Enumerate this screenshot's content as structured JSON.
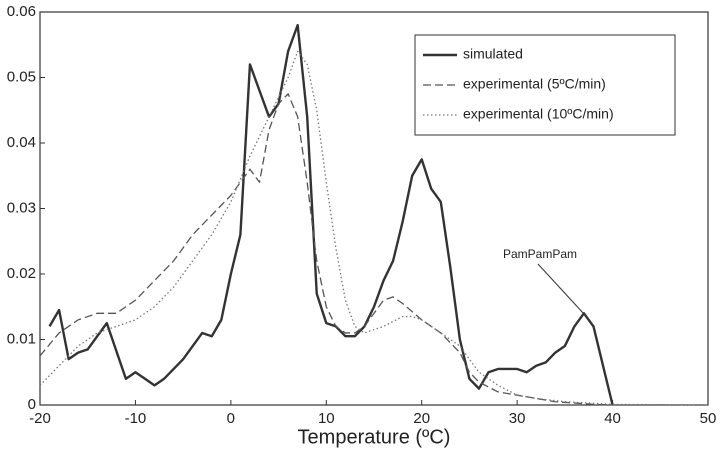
{
  "chart_data": {
    "type": "line",
    "x_label": "Temperature (ºC)",
    "xlim": [
      -20,
      50
    ],
    "xticks": [
      -20,
      -10,
      0,
      10,
      20,
      30,
      40,
      50
    ],
    "ylim": [
      0,
      0.06
    ],
    "yticks": [
      0,
      0.01,
      0.02,
      0.03,
      0.04,
      0.05,
      0.06
    ],
    "grid": false,
    "legend": "upper right",
    "annotation": "PamPamPam",
    "series": [
      {
        "name": "simulated",
        "color": "#333333",
        "linestyle": "solid",
        "x": [
          -19,
          -18,
          -17,
          -16,
          -15,
          -13,
          -11,
          -10,
          -9,
          -8,
          -7,
          -5,
          -3,
          -2,
          -1,
          0,
          1,
          2,
          3,
          4,
          5,
          6,
          7,
          8,
          9,
          10,
          11,
          12,
          13,
          14,
          15,
          16,
          17,
          18,
          19,
          20,
          21,
          22,
          23,
          24,
          25,
          26,
          27,
          28,
          30,
          31,
          32,
          33,
          34,
          35,
          36,
          37,
          38,
          39,
          40
        ],
        "values": [
          0.012,
          0.0145,
          0.007,
          0.008,
          0.0085,
          0.0125,
          0.004,
          0.005,
          0.004,
          0.003,
          0.004,
          0.007,
          0.011,
          0.0105,
          0.013,
          0.02,
          0.026,
          0.052,
          0.048,
          0.044,
          0.046,
          0.054,
          0.058,
          0.044,
          0.017,
          0.0125,
          0.012,
          0.0105,
          0.0105,
          0.012,
          0.015,
          0.019,
          0.022,
          0.028,
          0.035,
          0.0375,
          0.033,
          0.031,
          0.021,
          0.01,
          0.004,
          0.0025,
          0.005,
          0.0055,
          0.0055,
          0.005,
          0.006,
          0.0065,
          0.008,
          0.009,
          0.012,
          0.014,
          0.012,
          0.006,
          0
        ]
      },
      {
        "name": "experimental (5ºC/min)",
        "color": "#555555",
        "linestyle": "dashed",
        "x": [
          -20,
          -18,
          -16,
          -14,
          -12,
          -10,
          -8,
          -6,
          -4,
          -2,
          0,
          1,
          2,
          3,
          4,
          5,
          6,
          7,
          8,
          9,
          10,
          11,
          12,
          13,
          14,
          15,
          16,
          17,
          18,
          20,
          22,
          24,
          25,
          26,
          28,
          30,
          32,
          34,
          36,
          38,
          40,
          50
        ],
        "values": [
          0.0075,
          0.011,
          0.013,
          0.014,
          0.014,
          0.016,
          0.019,
          0.022,
          0.026,
          0.029,
          0.032,
          0.034,
          0.036,
          0.034,
          0.042,
          0.046,
          0.0475,
          0.044,
          0.034,
          0.022,
          0.015,
          0.012,
          0.011,
          0.011,
          0.012,
          0.014,
          0.016,
          0.0165,
          0.0155,
          0.013,
          0.011,
          0.008,
          0.005,
          0.0035,
          0.002,
          0.0015,
          0.001,
          0.0005,
          0.0003,
          0.0001,
          0,
          0
        ]
      },
      {
        "name": "experimental (10ºC/min)",
        "color": "#777777",
        "linestyle": "dotted",
        "x": [
          -20,
          -18,
          -16,
          -14,
          -12,
          -10,
          -8,
          -6,
          -4,
          -2,
          0,
          2,
          4,
          6,
          7,
          8,
          9,
          10,
          11,
          12,
          13,
          14,
          16,
          18,
          19,
          20,
          22,
          24,
          26,
          28,
          30,
          32,
          35,
          40,
          50
        ],
        "values": [
          0.003,
          0.006,
          0.009,
          0.011,
          0.012,
          0.013,
          0.015,
          0.018,
          0.022,
          0.026,
          0.031,
          0.038,
          0.044,
          0.05,
          0.054,
          0.052,
          0.045,
          0.034,
          0.024,
          0.016,
          0.012,
          0.011,
          0.012,
          0.0135,
          0.0135,
          0.013,
          0.011,
          0.009,
          0.005,
          0.003,
          0.0015,
          0.001,
          0.0005,
          0.0001,
          0
        ]
      }
    ]
  }
}
